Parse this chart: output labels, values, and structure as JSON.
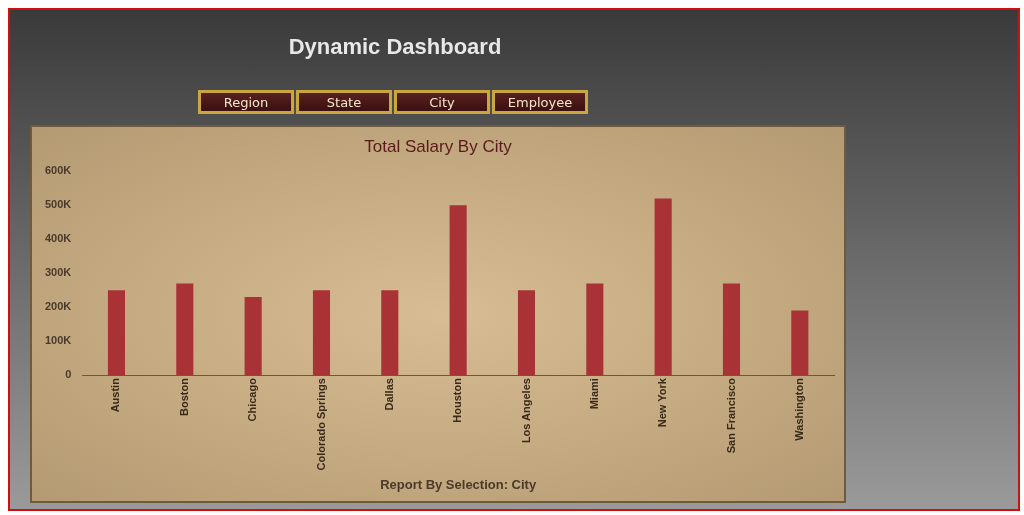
{
  "chart_data": {
    "type": "bar",
    "title": "Total Salary By City",
    "subtitle": "Dynamic Dashboard",
    "xlabel": "Report By Selection: City",
    "annotations": [
      "Region",
      "State",
      "City",
      "Employee"
    ],
    "categories": [
      "Austin",
      "Boston",
      "Chicago",
      "Colorado Springs",
      "Dallas",
      "Houston",
      "Los Angeles",
      "Miami",
      "New York",
      "San Francisco",
      "Washington"
    ],
    "values": [
      250000,
      270000,
      230000,
      250000,
      250000,
      500000,
      250000,
      270000,
      520000,
      270000,
      190000
    ],
    "color": "#a83236",
    "ylim": [
      0,
      600000
    ],
    "yticks": [
      {
        "value": 0,
        "label": "0"
      },
      {
        "value": 100000,
        "label": "100K"
      },
      {
        "value": 200000,
        "label": "200K"
      },
      {
        "value": 300000,
        "label": "300K"
      },
      {
        "value": 400000,
        "label": "400K"
      },
      {
        "value": 500000,
        "label": "500K"
      },
      {
        "value": 600000,
        "label": "600K"
      }
    ],
    "grid": false,
    "legend": false
  }
}
